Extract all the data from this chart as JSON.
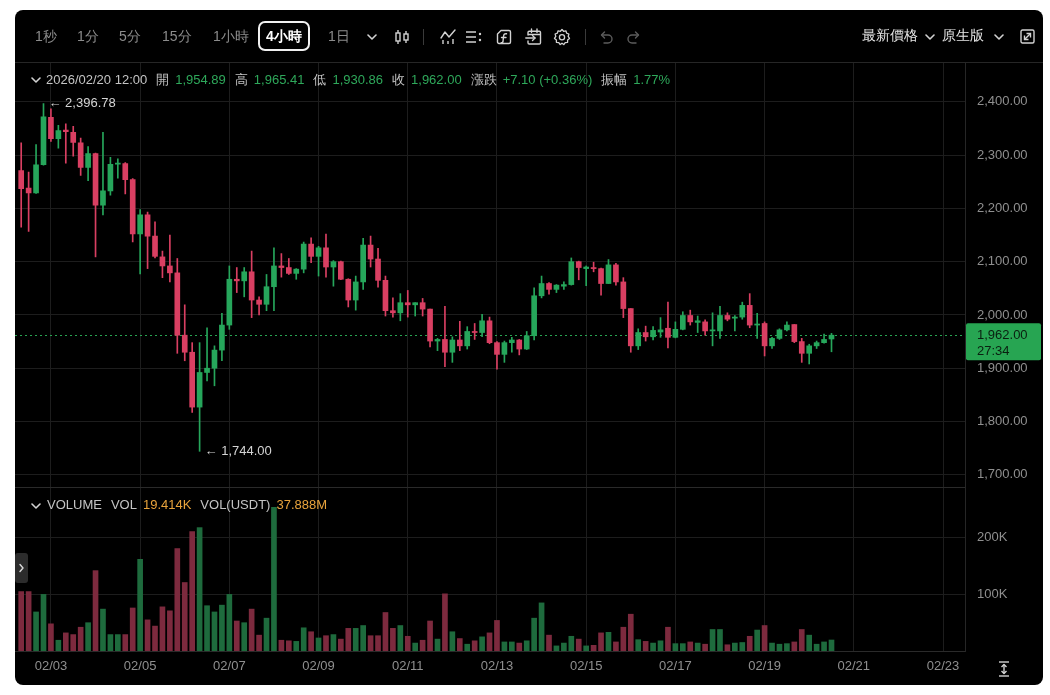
{
  "chart_data": [
    {
      "type": "other",
      "annotations": [
        "1秒",
        "1分",
        "5分",
        "15分",
        "1小時",
        "4小時",
        "1日",
        "最新價格",
        "原生版"
      ]
    },
    {
      "type": "candlestick",
      "annotations": [
        "2026/02/20 12:00",
        "開",
        "1,954.89",
        "高",
        "1,965.41",
        "低",
        "1,930.86",
        "收",
        "1,962.00",
        "漲跌",
        "+7.10 (+0.36%)",
        "振幅",
        "1.77%",
        {
          "text": "← 2,396.78",
          "x": "2026-02-02T20:00",
          "y": 2396.78
        },
        {
          "text": "← 1,744.00",
          "x": "2026-02-06T08:00",
          "y": 1744.0
        }
      ],
      "x": [
        "2026-02-02T08:00",
        "2026-02-02T12:00",
        "2026-02-02T16:00",
        "2026-02-02T20:00",
        "2026-02-03T00:00",
        "2026-02-03T04:00",
        "2026-02-03T08:00",
        "2026-02-03T12:00",
        "2026-02-03T16:00",
        "2026-02-03T20:00",
        "2026-02-04T00:00",
        "2026-02-04T04:00",
        "2026-02-04T08:00",
        "2026-02-04T12:00",
        "2026-02-04T16:00",
        "2026-02-04T20:00",
        "2026-02-05T00:00",
        "2026-02-05T04:00",
        "2026-02-05T08:00",
        "2026-02-05T12:00",
        "2026-02-05T16:00",
        "2026-02-05T20:00",
        "2026-02-06T00:00",
        "2026-02-06T04:00",
        "2026-02-06T08:00",
        "2026-02-06T12:00",
        "2026-02-06T16:00",
        "2026-02-06T20:00",
        "2026-02-07T00:00",
        "2026-02-07T04:00",
        "2026-02-07T08:00",
        "2026-02-07T12:00",
        "2026-02-07T16:00",
        "2026-02-07T20:00",
        "2026-02-08T00:00",
        "2026-02-08T04:00",
        "2026-02-08T08:00",
        "2026-02-08T12:00",
        "2026-02-08T16:00",
        "2026-02-08T20:00",
        "2026-02-09T00:00",
        "2026-02-09T04:00",
        "2026-02-09T08:00",
        "2026-02-09T12:00",
        "2026-02-09T16:00",
        "2026-02-09T20:00",
        "2026-02-10T00:00",
        "2026-02-10T04:00",
        "2026-02-10T08:00",
        "2026-02-10T12:00",
        "2026-02-10T16:00",
        "2026-02-10T20:00",
        "2026-02-11T00:00",
        "2026-02-11T04:00",
        "2026-02-11T08:00",
        "2026-02-11T12:00",
        "2026-02-11T16:00",
        "2026-02-11T20:00",
        "2026-02-12T00:00",
        "2026-02-12T04:00",
        "2026-02-12T08:00",
        "2026-02-12T12:00",
        "2026-02-12T16:00",
        "2026-02-12T20:00",
        "2026-02-13T00:00",
        "2026-02-13T04:00",
        "2026-02-13T08:00",
        "2026-02-13T12:00",
        "2026-02-13T16:00",
        "2026-02-13T20:00",
        "2026-02-14T00:00",
        "2026-02-14T04:00",
        "2026-02-14T08:00",
        "2026-02-14T12:00",
        "2026-02-14T16:00",
        "2026-02-14T20:00",
        "2026-02-15T00:00",
        "2026-02-15T04:00",
        "2026-02-15T08:00",
        "2026-02-15T12:00",
        "2026-02-15T16:00",
        "2026-02-15T20:00",
        "2026-02-16T00:00",
        "2026-02-16T04:00",
        "2026-02-16T08:00",
        "2026-02-16T12:00",
        "2026-02-16T16:00",
        "2026-02-16T20:00",
        "2026-02-17T00:00",
        "2026-02-17T04:00",
        "2026-02-17T08:00",
        "2026-02-17T12:00",
        "2026-02-17T16:00",
        "2026-02-17T20:00",
        "2026-02-18T00:00",
        "2026-02-18T04:00",
        "2026-02-18T08:00",
        "2026-02-18T12:00",
        "2026-02-18T16:00",
        "2026-02-18T20:00",
        "2026-02-19T00:00",
        "2026-02-19T04:00",
        "2026-02-19T08:00",
        "2026-02-19T12:00",
        "2026-02-19T16:00",
        "2026-02-19T20:00",
        "2026-02-20T00:00",
        "2026-02-20T04:00",
        "2026-02-20T08:00",
        "2026-02-20T12:00"
      ],
      "ohlc": [
        [
          2271,
          2323,
          2165,
          2237
        ],
        [
          2238,
          2268,
          2157,
          2229
        ],
        [
          2229,
          2320,
          2228,
          2282
        ],
        [
          2282,
          2396.78,
          2281,
          2372
        ],
        [
          2371,
          2387,
          2326,
          2331
        ],
        [
          2331,
          2356,
          2313,
          2346
        ],
        [
          2347,
          2359,
          2285,
          2344
        ],
        [
          2343,
          2354,
          2298,
          2324
        ],
        [
          2323,
          2332,
          2262,
          2277
        ],
        [
          2277,
          2316,
          2252,
          2303
        ],
        [
          2303,
          2304,
          2109,
          2206
        ],
        [
          2206,
          2343,
          2188,
          2233
        ],
        [
          2233,
          2296,
          2225,
          2283
        ],
        [
          2283,
          2293,
          2257,
          2285
        ],
        [
          2284,
          2286,
          2227,
          2254
        ],
        [
          2254,
          2256,
          2137,
          2152
        ],
        [
          2152,
          2198,
          2077,
          2188
        ],
        [
          2188,
          2193,
          2087,
          2148
        ],
        [
          2148,
          2175,
          2107,
          2110
        ],
        [
          2109,
          2120,
          2070,
          2092
        ],
        [
          2092,
          2150,
          2062,
          2079
        ],
        [
          2079,
          2106,
          1928,
          1962
        ],
        [
          1962,
          2019,
          1914,
          1930
        ],
        [
          1930,
          1948,
          1817,
          1827
        ],
        [
          1827,
          1948,
          1744.0,
          1892
        ],
        [
          1892,
          1976,
          1876,
          1900
        ],
        [
          1900,
          1942,
          1867,
          1934
        ],
        [
          1934,
          2003,
          1914,
          1981
        ],
        [
          1981,
          2092,
          1973,
          2067
        ],
        [
          2067,
          2089,
          2042,
          2064
        ],
        [
          2064,
          2089,
          2034,
          2081
        ],
        [
          2081,
          2120,
          1995,
          2028
        ],
        [
          2028,
          2034,
          2000,
          2020
        ],
        [
          2020,
          2076,
          2008,
          2053
        ],
        [
          2053,
          2126,
          2008,
          2092
        ],
        [
          2092,
          2115,
          2071,
          2089
        ],
        [
          2089,
          2106,
          2076,
          2078
        ],
        [
          2078,
          2087,
          2067,
          2086
        ],
        [
          2086,
          2137,
          2079,
          2133
        ],
        [
          2133,
          2145,
          2098,
          2110
        ],
        [
          2110,
          2129,
          2073,
          2126
        ],
        [
          2126,
          2152,
          2071,
          2090
        ],
        [
          2090,
          2102,
          2054,
          2100
        ],
        [
          2100,
          2101,
          2066,
          2067
        ],
        [
          2067,
          2068,
          2015,
          2028
        ],
        [
          2028,
          2073,
          2009,
          2062
        ],
        [
          2062,
          2144,
          2048,
          2131
        ],
        [
          2131,
          2148,
          2090,
          2105
        ],
        [
          2105,
          2125,
          2052,
          2065
        ],
        [
          2065,
          2073,
          1998,
          2008
        ],
        [
          2008,
          2032,
          1996,
          2004
        ],
        [
          2004,
          2040,
          1989,
          2023
        ],
        [
          2023,
          2046,
          1996,
          2019
        ],
        [
          2019,
          2023,
          1998,
          2023
        ],
        [
          2023,
          2031,
          1998,
          2011
        ],
        [
          2011,
          2011,
          1940,
          1951
        ],
        [
          1951,
          1956,
          1933,
          1954
        ],
        [
          1954,
          2016,
          1903,
          1930
        ],
        [
          1930,
          1959,
          1911,
          1953
        ],
        [
          1953,
          1988,
          1933,
          1942
        ],
        [
          1942,
          1978,
          1936,
          1969
        ],
        [
          1969,
          1984,
          1954,
          1967
        ],
        [
          1967,
          2001,
          1959,
          1989
        ],
        [
          1989,
          1996,
          1946,
          1948
        ],
        [
          1948,
          1950,
          1898,
          1926
        ],
        [
          1926,
          1951,
          1911,
          1948
        ],
        [
          1948,
          1958,
          1930,
          1953
        ],
        [
          1953,
          1954,
          1925,
          1936
        ],
        [
          1936,
          1969,
          1935,
          1961
        ],
        [
          1961,
          2051,
          1953,
          2036
        ],
        [
          2036,
          2073,
          2032,
          2059
        ],
        [
          2059,
          2061,
          2039,
          2048
        ],
        [
          2048,
          2057,
          2042,
          2056
        ],
        [
          2054,
          2062,
          2048,
          2057
        ],
        [
          2057,
          2107,
          2056,
          2100
        ],
        [
          2100,
          2101,
          2066,
          2089
        ],
        [
          2087,
          2092,
          2055,
          2090
        ],
        [
          2089,
          2099,
          2081,
          2087
        ],
        [
          2087,
          2088,
          2037,
          2059
        ],
        [
          2059,
          2104,
          2059,
          2094
        ],
        [
          2094,
          2097,
          2056,
          2062
        ],
        [
          2062,
          2070,
          1995,
          2012
        ],
        [
          2012,
          2012,
          1930,
          1942
        ],
        [
          1942,
          1974,
          1935,
          1967
        ],
        [
          1967,
          1979,
          1951,
          1959
        ],
        [
          1959,
          1978,
          1953,
          1971
        ],
        [
          1968,
          1995,
          1958,
          1972
        ],
        [
          1975,
          2024,
          1938,
          1958
        ],
        [
          1958,
          1987,
          1957,
          1973
        ],
        [
          1973,
          2006,
          1972,
          1999
        ],
        [
          1999,
          2009,
          1981,
          1987
        ],
        [
          1986,
          1998,
          1967,
          1989
        ],
        [
          1987,
          1991,
          1962,
          1970
        ],
        [
          1970,
          2004,
          1942,
          1972
        ],
        [
          1970,
          2016,
          1956,
          1999
        ],
        [
          1999,
          2004,
          1989,
          1992
        ],
        [
          1994,
          1999,
          1970,
          1996
        ],
        [
          1996,
          2024,
          1992,
          2018
        ],
        [
          2018,
          2040,
          1976,
          1981
        ],
        [
          1981,
          2003,
          1956,
          1983
        ],
        [
          1984,
          1987,
          1923,
          1942
        ],
        [
          1942,
          1958,
          1937,
          1956
        ],
        [
          1956,
          1974,
          1954,
          1972
        ],
        [
          1972,
          1987,
          1970,
          1981
        ],
        [
          1982,
          1982,
          1948,
          1950
        ],
        [
          1950,
          1956,
          1911,
          1928
        ],
        [
          1928,
          1945,
          1908,
          1942
        ],
        [
          1942,
          1951,
          1937,
          1948
        ],
        [
          1948,
          1964,
          1947,
          1954
        ],
        [
          1954.89,
          1965.41,
          1930.86,
          1962.0
        ]
      ],
      "colors": [
        "#d93f62",
        "#d93f62",
        "#26a65b",
        "#26a65b",
        "#d93f62",
        "#26a65b",
        "#d93f62",
        "#d93f62",
        "#d93f62",
        "#26a65b",
        "#d93f62",
        "#26a65b",
        "#26a65b",
        "#26a65b",
        "#d93f62",
        "#d93f62",
        "#26a65b",
        "#d93f62",
        "#d93f62",
        "#d93f62",
        "#d93f62",
        "#d93f62",
        "#d93f62",
        "#d93f62",
        "#26a65b",
        "#26a65b",
        "#26a65b",
        "#26a65b",
        "#26a65b",
        "#d93f62",
        "#26a65b",
        "#d93f62",
        "#d93f62",
        "#26a65b",
        "#26a65b",
        "#d93f62",
        "#d93f62",
        "#26a65b",
        "#26a65b",
        "#d93f62",
        "#26a65b",
        "#d93f62",
        "#26a65b",
        "#d93f62",
        "#d93f62",
        "#26a65b",
        "#26a65b",
        "#d93f62",
        "#d93f62",
        "#d93f62",
        "#d93f62",
        "#26a65b",
        "#d93f62",
        "#26a65b",
        "#d93f62",
        "#d93f62",
        "#26a65b",
        "#d93f62",
        "#26a65b",
        "#d93f62",
        "#26a65b",
        "#d93f62",
        "#26a65b",
        "#d93f62",
        "#d93f62",
        "#26a65b",
        "#26a65b",
        "#d93f62",
        "#26a65b",
        "#26a65b",
        "#26a65b",
        "#d93f62",
        "#26a65b",
        "#26a65b",
        "#26a65b",
        "#d93f62",
        "#26a65b",
        "#d93f62",
        "#d93f62",
        "#26a65b",
        "#d93f62",
        "#d93f62",
        "#d93f62",
        "#26a65b",
        "#d93f62",
        "#26a65b",
        "#26a65b",
        "#d93f62",
        "#26a65b",
        "#26a65b",
        "#d93f62",
        "#26a65b",
        "#d93f62",
        "#26a65b",
        "#26a65b",
        "#d93f62",
        "#26a65b",
        "#26a65b",
        "#d93f62",
        "#26a65b",
        "#d93f62",
        "#26a65b",
        "#26a65b",
        "#26a65b",
        "#d93f62",
        "#d93f62",
        "#26a65b",
        "#26a65b",
        "#26a65b",
        "#26a65b"
      ],
      "xlim": [
        "2026-02-02T04:40",
        "2026-02-23T11:50"
      ],
      "xticks": [
        {
          "value": "2026-02-03",
          "label": null
        },
        {
          "value": "2026-02-05",
          "label": null
        },
        {
          "value": "2026-02-07",
          "label": null
        },
        {
          "value": "2026-02-09",
          "label": null
        },
        {
          "value": "2026-02-11",
          "label": null
        },
        {
          "value": "2026-02-13",
          "label": null
        },
        {
          "value": "2026-02-15",
          "label": null
        },
        {
          "value": "2026-02-17",
          "label": null
        },
        {
          "value": "2026-02-19",
          "label": null
        },
        {
          "value": "2026-02-21",
          "label": null
        },
        {
          "value": "2026-02-23",
          "label": null
        }
      ],
      "ylim": [
        1677,
        2473
      ],
      "yticks": [
        {
          "value": 1700,
          "label": "1,700.00"
        },
        {
          "value": 1800,
          "label": "1,800.00"
        },
        {
          "value": 1900,
          "label": "1,900.00"
        },
        {
          "value": 2000,
          "label": "2,000.00"
        },
        {
          "value": 2100,
          "label": "2,100.00"
        },
        {
          "value": 2200,
          "label": "2,200.00"
        },
        {
          "value": 2300,
          "label": "2,300.00"
        },
        {
          "value": 2400,
          "label": "2,400.00"
        }
      ],
      "grid": true,
      "tick_labels": "y",
      "ref_lines": [
        {
          "axis": "y",
          "value": 1962.0,
          "label": "1,962.00\n27:34",
          "color": "#27a552",
          "line_style": "dotted"
        }
      ]
    },
    {
      "type": "bar",
      "annotations": [
        "VOLUME",
        "VOL",
        "19.414K",
        "VOL(USDT)",
        "37.888M"
      ],
      "x": [
        "2026-02-02T08:00",
        "2026-02-02T12:00",
        "2026-02-02T16:00",
        "2026-02-02T20:00",
        "2026-02-03T00:00",
        "2026-02-03T04:00",
        "2026-02-03T08:00",
        "2026-02-03T12:00",
        "2026-02-03T16:00",
        "2026-02-03T20:00",
        "2026-02-04T00:00",
        "2026-02-04T04:00",
        "2026-02-04T08:00",
        "2026-02-04T12:00",
        "2026-02-04T16:00",
        "2026-02-04T20:00",
        "2026-02-05T00:00",
        "2026-02-05T04:00",
        "2026-02-05T08:00",
        "2026-02-05T12:00",
        "2026-02-05T16:00",
        "2026-02-05T20:00",
        "2026-02-06T00:00",
        "2026-02-06T04:00",
        "2026-02-06T08:00",
        "2026-02-06T12:00",
        "2026-02-06T16:00",
        "2026-02-06T20:00",
        "2026-02-07T00:00",
        "2026-02-07T04:00",
        "2026-02-07T08:00",
        "2026-02-07T12:00",
        "2026-02-07T16:00",
        "2026-02-07T20:00",
        "2026-02-08T00:00",
        "2026-02-08T04:00",
        "2026-02-08T08:00",
        "2026-02-08T12:00",
        "2026-02-08T16:00",
        "2026-02-08T20:00",
        "2026-02-09T00:00",
        "2026-02-09T04:00",
        "2026-02-09T08:00",
        "2026-02-09T12:00",
        "2026-02-09T16:00",
        "2026-02-09T20:00",
        "2026-02-10T00:00",
        "2026-02-10T04:00",
        "2026-02-10T08:00",
        "2026-02-10T12:00",
        "2026-02-10T16:00",
        "2026-02-10T20:00",
        "2026-02-11T00:00",
        "2026-02-11T04:00",
        "2026-02-11T08:00",
        "2026-02-11T12:00",
        "2026-02-11T16:00",
        "2026-02-11T20:00",
        "2026-02-12T00:00",
        "2026-02-12T04:00",
        "2026-02-12T08:00",
        "2026-02-12T12:00",
        "2026-02-12T16:00",
        "2026-02-12T20:00",
        "2026-02-13T00:00",
        "2026-02-13T04:00",
        "2026-02-13T08:00",
        "2026-02-13T12:00",
        "2026-02-13T16:00",
        "2026-02-13T20:00",
        "2026-02-14T00:00",
        "2026-02-14T04:00",
        "2026-02-14T08:00",
        "2026-02-14T12:00",
        "2026-02-14T16:00",
        "2026-02-14T20:00",
        "2026-02-15T00:00",
        "2026-02-15T04:00",
        "2026-02-15T08:00",
        "2026-02-15T12:00",
        "2026-02-15T16:00",
        "2026-02-15T20:00",
        "2026-02-16T00:00",
        "2026-02-16T04:00",
        "2026-02-16T08:00",
        "2026-02-16T12:00",
        "2026-02-16T16:00",
        "2026-02-16T20:00",
        "2026-02-17T00:00",
        "2026-02-17T04:00",
        "2026-02-17T08:00",
        "2026-02-17T12:00",
        "2026-02-17T16:00",
        "2026-02-17T20:00",
        "2026-02-18T00:00",
        "2026-02-18T04:00",
        "2026-02-18T08:00",
        "2026-02-18T12:00",
        "2026-02-18T16:00",
        "2026-02-18T20:00",
        "2026-02-19T00:00",
        "2026-02-19T04:00",
        "2026-02-19T08:00",
        "2026-02-19T12:00",
        "2026-02-19T16:00",
        "2026-02-19T20:00",
        "2026-02-20T00:00",
        "2026-02-20T04:00",
        "2026-02-20T08:00",
        "2026-02-20T12:00"
      ],
      "values": [
        105000,
        105000,
        69000,
        100000,
        48000,
        19000,
        32000,
        29000,
        42000,
        50000,
        142000,
        74000,
        29000,
        29000,
        29000,
        76000,
        162000,
        55000,
        44000,
        78000,
        71000,
        181000,
        121000,
        211000,
        218000,
        80000,
        69000,
        81000,
        100000,
        53000,
        50000,
        74000,
        28000,
        58000,
        254000,
        19000,
        18000,
        17000,
        41000,
        34000,
        23000,
        27000,
        29000,
        21000,
        40000,
        40000,
        45000,
        27000,
        27000,
        68000,
        40000,
        45000,
        26000,
        14000,
        19000,
        53000,
        21000,
        101000,
        34000,
        22000,
        12000,
        18000,
        25000,
        32000,
        54000,
        16000,
        16000,
        14000,
        18000,
        58000,
        85000,
        28000,
        9000,
        14000,
        26000,
        21000,
        9000,
        10000,
        32000,
        33000,
        16000,
        42000,
        65000,
        20000,
        17000,
        14000,
        18000,
        42000,
        13000,
        13000,
        16000,
        14000,
        12000,
        38000,
        38000,
        11000,
        14000,
        15000,
        26000,
        37000,
        45000,
        14000,
        12000,
        13000,
        16000,
        38000,
        28000,
        12000,
        16000,
        19414
      ],
      "colors": [
        "#7d2a3e",
        "#7d2a3e",
        "#1e6b3d",
        "#1e6b3d",
        "#7d2a3e",
        "#1e6b3d",
        "#7d2a3e",
        "#7d2a3e",
        "#7d2a3e",
        "#1e6b3d",
        "#7d2a3e",
        "#1e6b3d",
        "#1e6b3d",
        "#1e6b3d",
        "#7d2a3e",
        "#7d2a3e",
        "#1e6b3d",
        "#7d2a3e",
        "#7d2a3e",
        "#7d2a3e",
        "#7d2a3e",
        "#7d2a3e",
        "#7d2a3e",
        "#7d2a3e",
        "#1e6b3d",
        "#1e6b3d",
        "#1e6b3d",
        "#1e6b3d",
        "#1e6b3d",
        "#7d2a3e",
        "#1e6b3d",
        "#7d2a3e",
        "#7d2a3e",
        "#1e6b3d",
        "#1e6b3d",
        "#7d2a3e",
        "#7d2a3e",
        "#1e6b3d",
        "#1e6b3d",
        "#7d2a3e",
        "#1e6b3d",
        "#7d2a3e",
        "#1e6b3d",
        "#7d2a3e",
        "#7d2a3e",
        "#1e6b3d",
        "#1e6b3d",
        "#7d2a3e",
        "#7d2a3e",
        "#7d2a3e",
        "#7d2a3e",
        "#1e6b3d",
        "#7d2a3e",
        "#1e6b3d",
        "#7d2a3e",
        "#7d2a3e",
        "#1e6b3d",
        "#7d2a3e",
        "#1e6b3d",
        "#7d2a3e",
        "#1e6b3d",
        "#7d2a3e",
        "#1e6b3d",
        "#7d2a3e",
        "#7d2a3e",
        "#1e6b3d",
        "#1e6b3d",
        "#7d2a3e",
        "#1e6b3d",
        "#1e6b3d",
        "#1e6b3d",
        "#7d2a3e",
        "#1e6b3d",
        "#1e6b3d",
        "#1e6b3d",
        "#7d2a3e",
        "#1e6b3d",
        "#7d2a3e",
        "#7d2a3e",
        "#1e6b3d",
        "#7d2a3e",
        "#7d2a3e",
        "#7d2a3e",
        "#1e6b3d",
        "#7d2a3e",
        "#1e6b3d",
        "#1e6b3d",
        "#7d2a3e",
        "#1e6b3d",
        "#1e6b3d",
        "#7d2a3e",
        "#1e6b3d",
        "#7d2a3e",
        "#1e6b3d",
        "#1e6b3d",
        "#7d2a3e",
        "#1e6b3d",
        "#1e6b3d",
        "#7d2a3e",
        "#1e6b3d",
        "#7d2a3e",
        "#1e6b3d",
        "#1e6b3d",
        "#1e6b3d",
        "#7d2a3e",
        "#7d2a3e",
        "#1e6b3d",
        "#1e6b3d",
        "#1e6b3d",
        "#1e6b3d"
      ],
      "xlim": [
        "2026-02-02T04:40",
        "2026-02-23T11:50"
      ],
      "xticks": [
        {
          "value": "2026-02-03",
          "label": "02/03"
        },
        {
          "value": "2026-02-05",
          "label": "02/05"
        },
        {
          "value": "2026-02-07",
          "label": "02/07"
        },
        {
          "value": "2026-02-09",
          "label": "02/09"
        },
        {
          "value": "2026-02-11",
          "label": "02/11"
        },
        {
          "value": "2026-02-13",
          "label": "02/13"
        },
        {
          "value": "2026-02-15",
          "label": "02/15"
        },
        {
          "value": "2026-02-17",
          "label": "02/17"
        },
        {
          "value": "2026-02-19",
          "label": "02/19"
        },
        {
          "value": "2026-02-21",
          "label": "02/21"
        },
        {
          "value": "2026-02-23",
          "label": "02/23"
        }
      ],
      "ylim": [
        0,
        288000
      ],
      "yticks": [
        {
          "value": 100000,
          "label": "100K"
        },
        {
          "value": 200000,
          "label": "200K"
        }
      ],
      "grid": true
    }
  ]
}
